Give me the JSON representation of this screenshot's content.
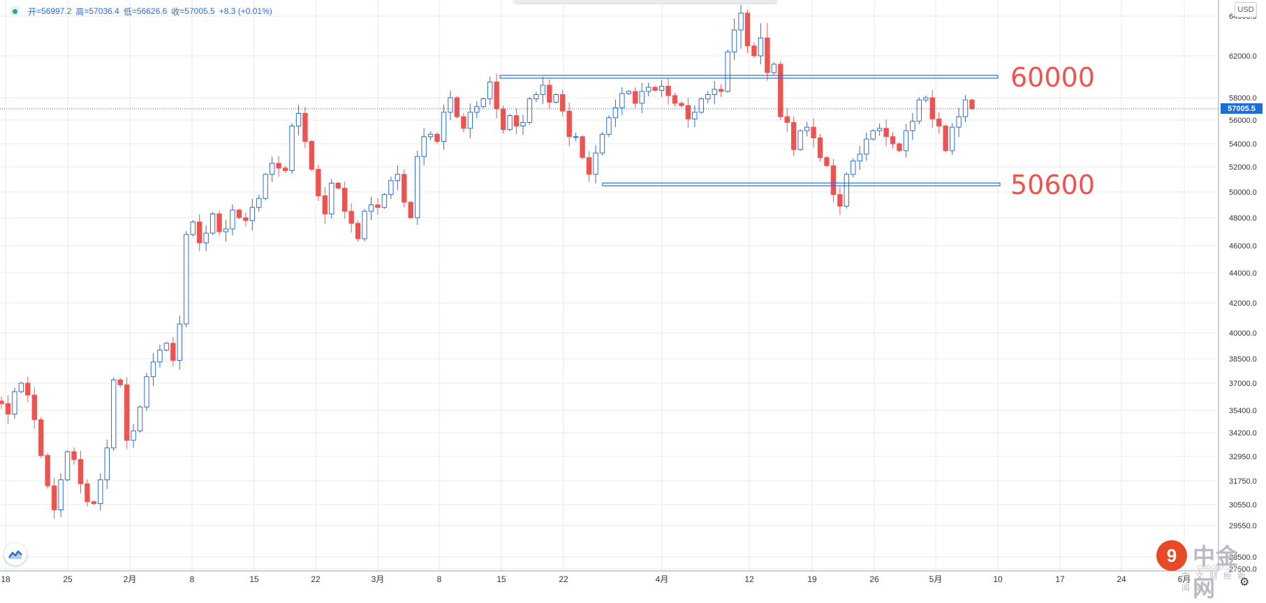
{
  "ohlc": {
    "open_label": "开",
    "open": "56997.2",
    "high_label": "高",
    "high": "57036.4",
    "low_label": "低",
    "low": "56626.6",
    "close_label": "收",
    "close": "57005.5",
    "change": "+8.3 (+0.01%)"
  },
  "currency": "USD",
  "last_price": "57005.5",
  "watermark": {
    "name": "中金网",
    "latin": "CNGOLD.COM",
    "sub": "中文财经新闻站"
  },
  "colors": {
    "up": "#2a6cd6",
    "down": "#ef5350",
    "zone": "#2a6cd6",
    "label": "#ef5350",
    "grid": "#e6eaf0",
    "last": "#1e6ed8"
  },
  "chart_data": {
    "type": "candlestick",
    "y_ticks": [
      "64000.0",
      "62000.0",
      "58000.0",
      "56000.0",
      "54000.0",
      "52000.0",
      "50000.0",
      "48000.0",
      "46000.0",
      "44000.0",
      "42000.0",
      "40000.0",
      "38500.0",
      "37000.0",
      "35400.0",
      "34200.0",
      "32950.0",
      "31750.0",
      "30550.0",
      "29550.0",
      "28500.0",
      "27500.0"
    ],
    "x_ticks": [
      "18",
      "25",
      "2月",
      "8",
      "15",
      "22",
      "3月",
      "8",
      "15",
      "22",
      "4月",
      "12",
      "19",
      "26",
      "5月",
      "10",
      "17",
      "24",
      "6月"
    ],
    "levels": [
      {
        "label": "60000",
        "value": 60000
      },
      {
        "label": "50600",
        "value": 50600
      }
    ],
    "last": {
      "open": 56997.2,
      "high": 57036.4,
      "low": 56626.6,
      "close": 57005.5
    },
    "closes": [
      35800,
      35200,
      36500,
      37000,
      36300,
      34900,
      33000,
      31500,
      30300,
      31800,
      33200,
      32800,
      31600,
      30700,
      30600,
      31800,
      33400,
      37200,
      36900,
      33800,
      34300,
      35600,
      37400,
      38300,
      39000,
      39400,
      38400,
      40600,
      46800,
      47700,
      46200,
      46900,
      48300,
      47000,
      47200,
      48600,
      48000,
      47800,
      48800,
      49500,
      51400,
      52300,
      51900,
      51700,
      55500,
      56600,
      54200,
      51800,
      49700,
      48300,
      50700,
      50300,
      48500,
      47600,
      46500,
      48500,
      49000,
      48800,
      49800,
      50900,
      51400,
      49200,
      48000,
      52900,
      54600,
      54800,
      54200,
      56700,
      58000,
      56300,
      55300,
      56700,
      57200,
      57900,
      59500,
      57000,
      55200,
      56400,
      55500,
      55800,
      57900,
      58300,
      59200,
      57600,
      58300,
      56800,
      54600,
      54600,
      52800,
      51400,
      53200,
      54800,
      56200,
      57100,
      58400,
      58600,
      57500,
      58600,
      59000,
      58700,
      59100,
      58200,
      57500,
      57300,
      56100,
      56700,
      57900,
      58300,
      58800,
      58600,
      62200,
      63300,
      64300,
      62500,
      62000,
      62900,
      60400,
      61200,
      56300,
      55800,
      53500,
      55100,
      55400,
      54500,
      52800,
      52100,
      49800,
      48900,
      51400,
      52500,
      53100,
      54400,
      55100,
      55300,
      54600,
      54000,
      53400,
      55100,
      55900,
      57800,
      58000,
      56100,
      55500,
      53400,
      55400,
      56300,
      57800,
      57005.5
    ]
  }
}
